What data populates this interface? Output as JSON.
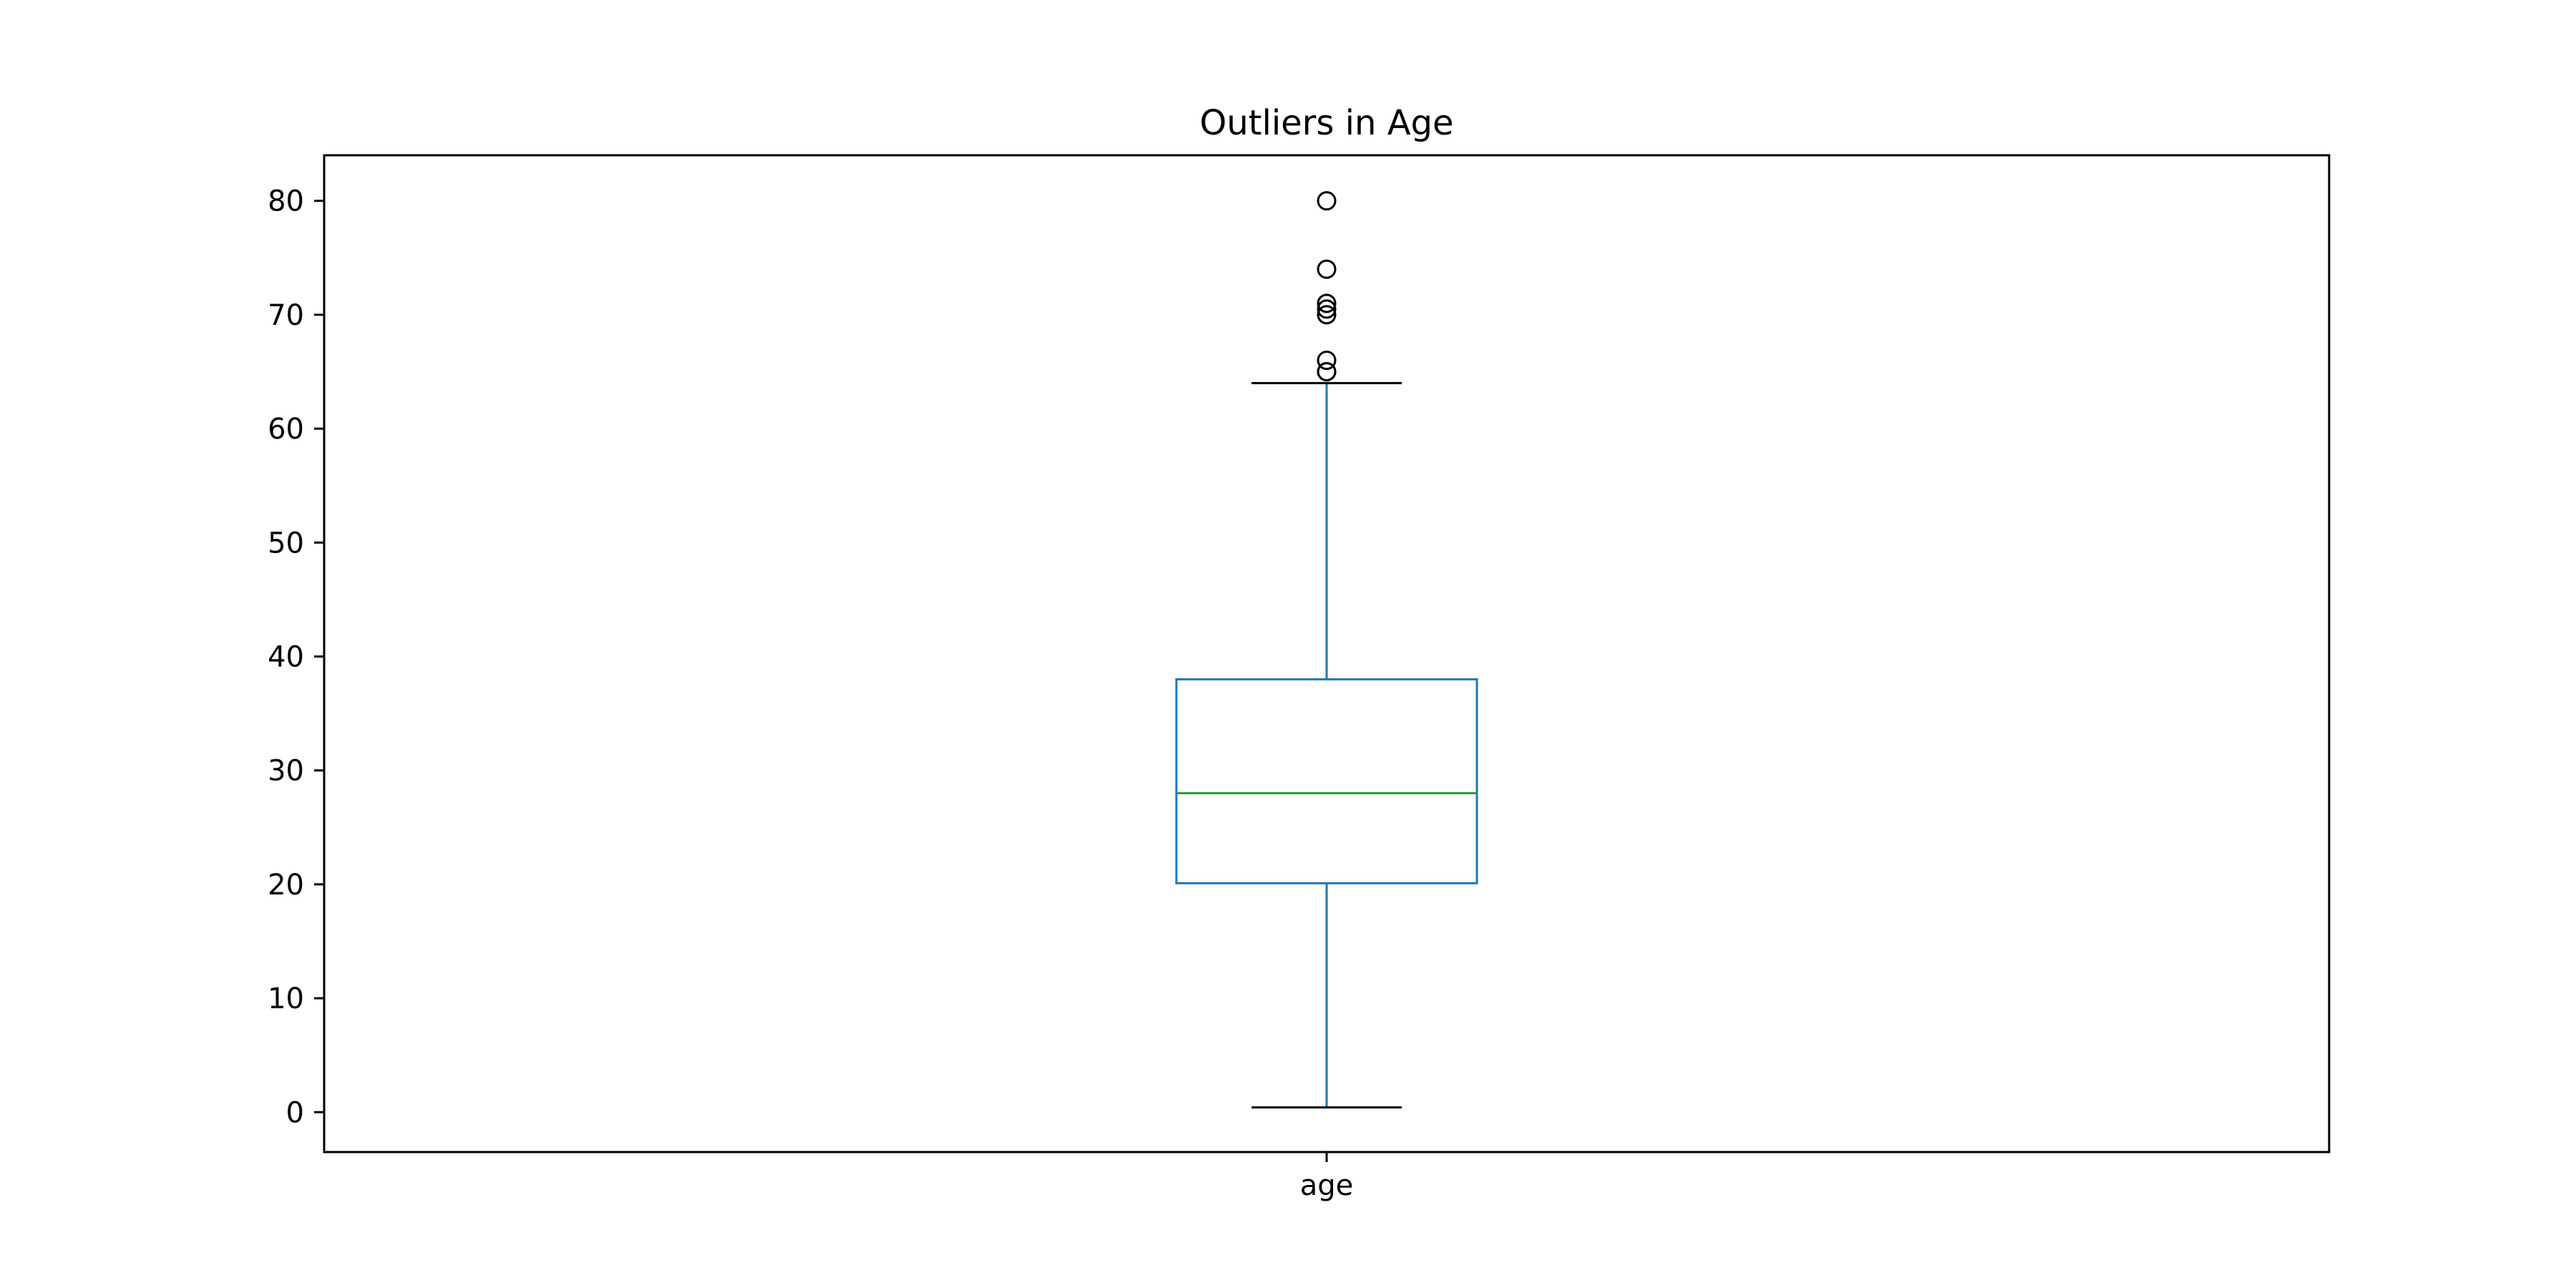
{
  "chart_data": {
    "type": "box",
    "title": "Outliers in Age",
    "xlabel": "",
    "ylabel": "",
    "categories": [
      "age"
    ],
    "ylim": [
      -3.5,
      84
    ],
    "yticks": [
      0,
      10,
      20,
      30,
      40,
      50,
      60,
      70,
      80
    ],
    "ytick_labels": [
      "0",
      "10",
      "20",
      "30",
      "40",
      "50",
      "60",
      "70",
      "80"
    ],
    "grid": false,
    "legend": "none",
    "boxes": [
      {
        "category": "age",
        "whisker_low": 0.42,
        "q1": 20.1,
        "median": 28.0,
        "q3": 38.0,
        "whisker_high": 64.0,
        "outliers": [
          65.0,
          65.0,
          66.0,
          70.0,
          70.5,
          71.0,
          74.0,
          80.0
        ]
      }
    ],
    "colors": {
      "box": "#1f77b4",
      "whisker": "#1f77b4",
      "median": "#2ca02c",
      "cap": "#000000",
      "flier": "#000000",
      "axes": "#000000"
    }
  }
}
